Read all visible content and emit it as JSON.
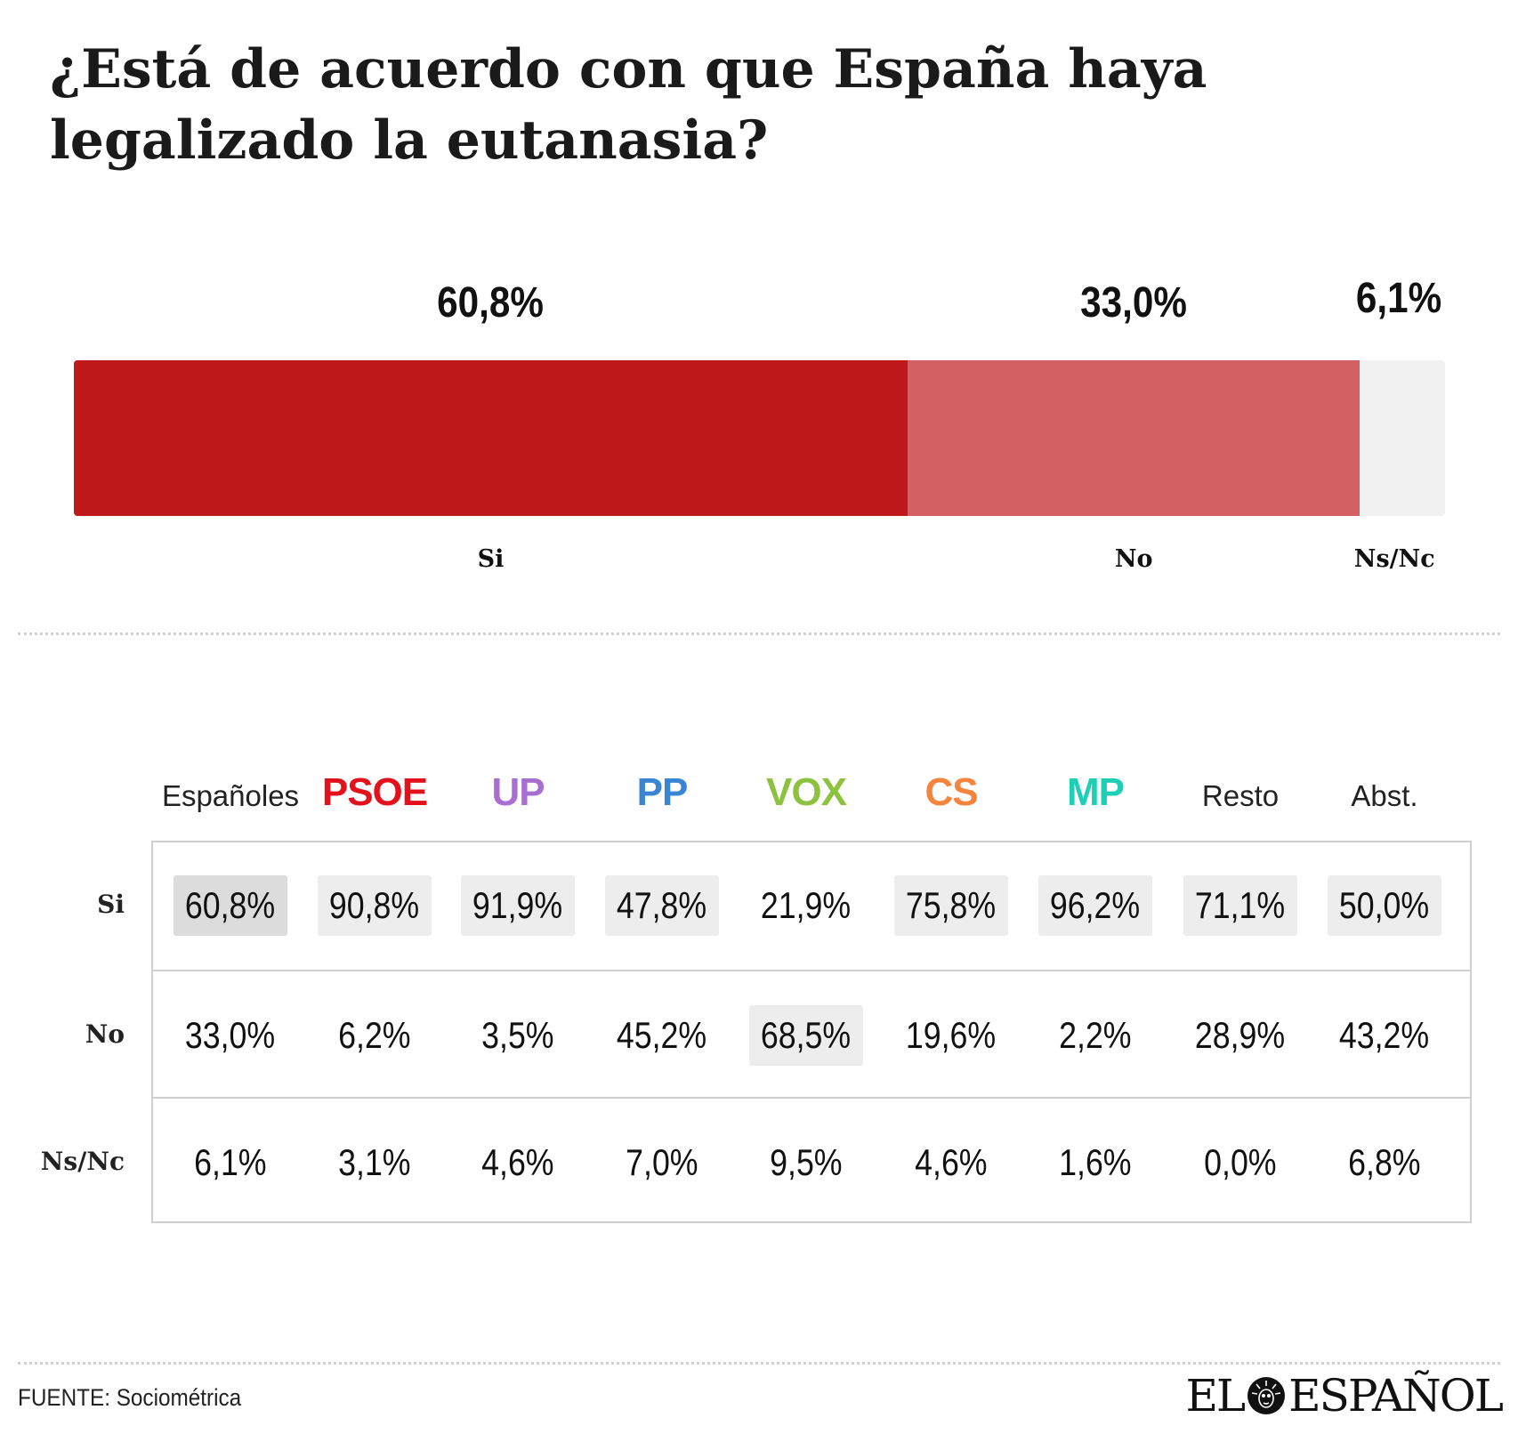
{
  "title": "¿Está de acuerdo con que España haya legalizado la eutanasia?",
  "chart_data": [
    {
      "type": "bar",
      "orientation": "horizontal-stacked",
      "categories": [
        "Si",
        "No",
        "Ns/Nc"
      ],
      "values": [
        60.8,
        33.0,
        6.1
      ],
      "value_labels": [
        "60,8%",
        "33,0%",
        "6,1%"
      ],
      "colors": [
        "#c0191b",
        "#d36063",
        "#f1f1f1"
      ],
      "xlim": [
        0,
        100
      ]
    },
    {
      "type": "table",
      "columns": [
        "Españoles",
        "PSOE",
        "UP",
        "PP",
        "VOX",
        "CS",
        "MP",
        "Resto",
        "Abst."
      ],
      "column_colors": [
        "#222222",
        "#e3111b",
        "#a86fd3",
        "#3a84d4",
        "#8dc23f",
        "#f5843f",
        "#1ecfb6",
        "#222222",
        "#222222"
      ],
      "rows": [
        {
          "label": "Si",
          "values": [
            "60,8%",
            "90,8%",
            "91,9%",
            "47,8%",
            "21,9%",
            "75,8%",
            "96,2%",
            "71,1%",
            "50,0%"
          ],
          "highlighted": [
            true,
            true,
            true,
            true,
            false,
            true,
            true,
            true,
            true
          ]
        },
        {
          "label": "No",
          "values": [
            "33,0%",
            "6,2%",
            "3,5%",
            "45,2%",
            "68,5%",
            "19,6%",
            "2,2%",
            "28,9%",
            "43,2%"
          ],
          "highlighted": [
            false,
            false,
            false,
            false,
            true,
            false,
            false,
            false,
            false
          ]
        },
        {
          "label": "Ns/Nc",
          "values": [
            "6,1%",
            "3,1%",
            "4,6%",
            "7,0%",
            "9,5%",
            "4,6%",
            "1,6%",
            "0,0%",
            "6,8%"
          ],
          "highlighted": [
            false,
            false,
            false,
            false,
            false,
            false,
            false,
            false,
            false
          ]
        }
      ]
    }
  ],
  "source": "FUENTE: Sociométrica",
  "logo": {
    "left": "EL",
    "right": "ESPAÑOL",
    "emblem": "lion-head-icon"
  }
}
